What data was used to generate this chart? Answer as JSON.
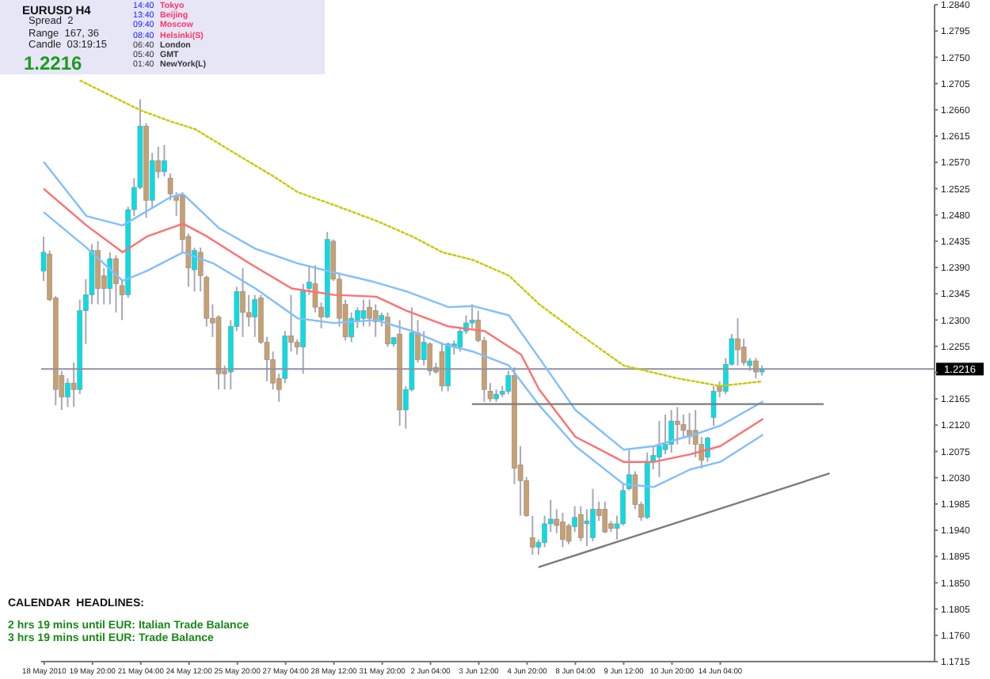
{
  "chart_data": {
    "type": "candlestick",
    "title": "EURUSD  H4",
    "categories": [
      "18 May 2010",
      null,
      null,
      null,
      null,
      null,
      null,
      null,
      "19 May 20:00",
      null,
      null,
      null,
      null,
      null,
      null,
      null,
      "21 May 04:00",
      null,
      null,
      null,
      null,
      null,
      null,
      null,
      "24 May 12:00",
      null,
      null,
      null,
      null,
      null,
      null,
      null,
      "25 May 20:00",
      null,
      null,
      null,
      null,
      null,
      null,
      null,
      "27 May 04:00",
      null,
      null,
      null,
      null,
      null,
      null,
      null,
      "28 May 12:00",
      null,
      null,
      null,
      null,
      null,
      null,
      null,
      "31 May 20:00",
      null,
      null,
      null,
      null,
      null,
      null,
      null,
      "2 Jun 04:00",
      null,
      null,
      null,
      null,
      null,
      null,
      null,
      "3 Jun 12:00",
      null,
      null,
      null,
      null,
      null,
      null,
      null,
      "4 Jun 20:00",
      null,
      null,
      null,
      null,
      null,
      null,
      null,
      "8 Jun 04:00",
      null,
      null,
      null,
      null,
      null,
      null,
      null,
      "9 Jun 12:00",
      null,
      null,
      null,
      null,
      null,
      null,
      null,
      "10 Jun 20:00",
      null,
      null,
      null,
      null,
      null,
      null,
      null,
      "14 Jun 04:00",
      null,
      null,
      null,
      null,
      null,
      null,
      null,
      null,
      null,
      null,
      null,
      null,
      null,
      null,
      null,
      null,
      null,
      null,
      null,
      null,
      null,
      null,
      null,
      null,
      null,
      null,
      null,
      null,
      null,
      null,
      null,
      null,
      null,
      null,
      null
    ],
    "ylim": [
      1.1715,
      1.284
    ],
    "yticks": [
      {
        "value": 1.284,
        "label": "1.2840"
      },
      1.2795,
      {
        "value": 1.275,
        "label": "1.2750"
      },
      1.2705,
      {
        "value": 1.266,
        "label": "1.2660"
      },
      1.2615,
      {
        "value": 1.257,
        "label": "1.2570"
      },
      1.2525,
      {
        "value": 1.248,
        "label": "1.2480"
      },
      1.2435,
      {
        "value": 1.239,
        "label": "1.2390"
      },
      1.2345,
      {
        "value": 1.23,
        "label": "1.2300"
      },
      1.2255,
      {
        "value": 1.221,
        "label": null
      },
      1.2165,
      {
        "value": 1.212,
        "label": "1.2120"
      },
      1.2075,
      {
        "value": 1.203,
        "label": "1.2030"
      },
      1.1985,
      {
        "value": 1.194,
        "label": "1.1940"
      },
      1.1895,
      {
        "value": 1.185,
        "label": "1.1850"
      },
      1.1805,
      {
        "value": 1.176,
        "label": "1.1760"
      },
      1.1715
    ],
    "annotations": [
      "Spread  2",
      "Range  167, 36",
      "Candle  03:19:15",
      "1.2216",
      "14:40",
      "13:40",
      "09:40",
      "08:40",
      "06:40",
      "05:40",
      "01:40",
      "Tokyo",
      "Beijing",
      "Moscow",
      "Helsinki(S)",
      "London",
      "GMT",
      "NewYork(L)",
      "CALENDAR  HEADLINES:",
      "2 hrs 19 mins until EUR: Italian Trade Balance",
      "3 hrs 19 mins until EUR: Trade Balance"
    ],
    "ref_lines": [
      {
        "axis": "y",
        "value": 1.2216,
        "label": "1.2216",
        "color": "#9090a8"
      }
    ],
    "series": [
      {
        "ohlc": [
          [
            1.2384,
            1.2443,
            1.2367,
            1.2416
          ],
          [
            1.2413,
            1.2419,
            1.2332,
            1.2335
          ],
          [
            1.2338,
            1.2341,
            1.2154,
            1.2181
          ],
          [
            1.2205,
            1.2213,
            1.2146,
            1.2168
          ],
          [
            1.2168,
            1.22,
            1.2151,
            1.2192
          ],
          [
            1.2192,
            1.2227,
            1.2151,
            1.2181
          ],
          [
            1.2181,
            1.2335,
            1.2173,
            1.2316
          ],
          [
            1.2316,
            1.237,
            1.2259,
            1.2343
          ],
          [
            1.2343,
            1.243,
            1.2327,
            1.2419
          ],
          [
            1.2419,
            1.2435,
            1.2327,
            1.2354
          ],
          [
            1.2376,
            1.2389,
            1.2327,
            1.2354
          ],
          [
            1.2354,
            1.2416,
            1.2327,
            1.2405
          ],
          [
            1.2405,
            1.2411,
            1.2313,
            1.2362
          ],
          [
            1.2359,
            1.237,
            1.23,
            1.2343
          ],
          [
            1.2343,
            1.2494,
            1.2338,
            1.2489
          ],
          [
            1.2489,
            1.2543,
            1.2478,
            1.2527
          ],
          [
            1.2527,
            1.2678,
            1.2524,
            1.2632
          ],
          [
            1.2632,
            1.2637,
            1.2475,
            1.2505
          ],
          [
            1.2505,
            1.2586,
            1.2492,
            1.2573
          ],
          [
            1.2573,
            1.2597,
            1.2543,
            1.2554
          ],
          [
            1.2554,
            1.26,
            1.2546,
            1.2573
          ],
          [
            1.2543,
            1.2551,
            1.2505,
            1.2516
          ],
          [
            1.2513,
            1.2519,
            1.2478,
            1.2505
          ],
          [
            1.2513,
            1.2519,
            1.2416,
            1.2438
          ],
          [
            1.2443,
            1.2448,
            1.2357,
            1.2389
          ],
          [
            1.2386,
            1.2424,
            1.2349,
            1.2419
          ],
          [
            1.2416,
            1.2424,
            1.2349,
            1.2376
          ],
          [
            1.2373,
            1.2376,
            1.2289,
            1.2303
          ],
          [
            1.2303,
            1.2327,
            1.2271,
            1.2295
          ],
          [
            1.2305,
            1.2308,
            1.2181,
            1.2208
          ],
          [
            1.2213,
            1.2222,
            1.2181,
            1.2208
          ],
          [
            1.2211,
            1.23,
            1.2181,
            1.2289
          ],
          [
            1.2289,
            1.2357,
            1.2281,
            1.2349
          ],
          [
            1.2349,
            1.2389,
            1.2271,
            1.2313
          ],
          [
            1.2313,
            1.2343,
            1.2289,
            1.2305
          ],
          [
            1.2305,
            1.2343,
            1.2271,
            1.2335
          ],
          [
            1.2338,
            1.2343,
            1.2259,
            1.2262
          ],
          [
            1.2262,
            1.2271,
            1.2195,
            1.2232
          ],
          [
            1.2232,
            1.2246,
            1.2181,
            1.2192
          ],
          [
            1.22,
            1.2208,
            1.216,
            1.2181
          ],
          [
            1.22,
            1.2281,
            1.2192,
            1.2273
          ],
          [
            1.2273,
            1.2343,
            1.2246,
            1.2262
          ],
          [
            1.2262,
            1.2267,
            1.2241,
            1.2254
          ],
          [
            1.2254,
            1.2362,
            1.2208,
            1.2351
          ],
          [
            1.2354,
            1.2394,
            1.2343,
            1.2365
          ],
          [
            1.2362,
            1.2394,
            1.2313,
            1.2322
          ],
          [
            1.2322,
            1.233,
            1.2286,
            1.2305
          ],
          [
            1.2305,
            1.2451,
            1.2303,
            1.2438
          ],
          [
            1.2435,
            1.2438,
            1.2367,
            1.237
          ],
          [
            1.237,
            1.2381,
            1.2289,
            1.2303
          ],
          [
            1.2327,
            1.2335,
            1.2265,
            1.2271
          ],
          [
            1.2271,
            1.2313,
            1.2262,
            1.2303
          ],
          [
            1.23,
            1.2322,
            1.2286,
            1.2316
          ],
          [
            1.2303,
            1.2335,
            1.2289,
            1.2316
          ],
          [
            1.2322,
            1.2335,
            1.2289,
            1.2303
          ],
          [
            1.2316,
            1.2327,
            1.2271,
            1.2297
          ],
          [
            1.23,
            1.2313,
            1.2289,
            1.2308
          ],
          [
            1.2305,
            1.2313,
            1.2254,
            1.2259
          ],
          [
            1.2259,
            1.2271,
            1.2254,
            1.227
          ],
          [
            1.2276,
            1.23,
            1.2119,
            1.2146
          ],
          [
            1.2146,
            1.2187,
            1.2114,
            1.2181
          ],
          [
            1.2181,
            1.2322,
            1.2178,
            1.2278
          ],
          [
            1.2278,
            1.23,
            1.2227,
            1.2232
          ],
          [
            1.2232,
            1.2281,
            1.2222,
            1.2262
          ],
          [
            1.2259,
            1.2262,
            1.2205,
            1.2213
          ],
          [
            1.2219,
            1.2227,
            1.2208,
            1.2211
          ],
          [
            1.2246,
            1.2262,
            1.2178,
            1.2187
          ],
          [
            1.2187,
            1.2262,
            1.2178,
            1.2259
          ],
          [
            1.2254,
            1.2265,
            1.2241,
            1.2259
          ],
          [
            1.2254,
            1.2286,
            1.2246,
            1.2281
          ],
          [
            1.2281,
            1.2308,
            1.2276,
            1.2295
          ],
          [
            1.2295,
            1.2327,
            1.2286,
            1.23
          ],
          [
            1.23,
            1.2316,
            1.2262,
            1.2265
          ],
          [
            1.2265,
            1.2271,
            1.216,
            1.2181
          ],
          [
            1.2178,
            1.2192,
            1.216,
            1.2165
          ],
          [
            1.2165,
            1.2181,
            1.216,
            1.2173
          ],
          [
            1.2173,
            1.2187,
            1.2168,
            1.2178
          ],
          [
            1.2178,
            1.2213,
            1.2173,
            1.2205
          ],
          [
            1.2205,
            1.2219,
            1.2019,
            1.2046
          ],
          [
            1.2052,
            1.2084,
            1.1965,
            1.2025
          ],
          [
            1.2025,
            1.2031,
            1.1963,
            1.1965
          ],
          [
            1.1927,
            1.1965,
            1.1898,
            1.1911
          ],
          [
            1.1911,
            1.1924,
            1.1898,
            1.1919
          ],
          [
            1.1919,
            1.1965,
            1.1911,
            1.1951
          ],
          [
            1.1951,
            1.1992,
            1.1937,
            1.1959
          ],
          [
            1.1959,
            1.1976,
            1.1935,
            1.1948
          ],
          [
            1.1954,
            1.197,
            1.1911,
            1.1924
          ],
          [
            1.1948,
            1.1951,
            1.1916,
            1.1921
          ],
          [
            1.1946,
            1.1981,
            1.1937,
            1.1962
          ],
          [
            1.1967,
            1.1981,
            1.1921,
            1.1927
          ],
          [
            1.1951,
            1.1976,
            1.1913,
            1.1956
          ],
          [
            1.1927,
            1.2011,
            1.1921,
            1.1976
          ],
          [
            1.1976,
            1.1989,
            1.1956,
            1.1965
          ],
          [
            1.1976,
            1.1989,
            1.1935,
            1.1937
          ],
          [
            1.1951,
            1.1956,
            1.1937,
            1.1943
          ],
          [
            1.1943,
            1.1965,
            1.1924,
            1.1951
          ],
          [
            1.1951,
            1.2019,
            1.1948,
            1.2008
          ],
          [
            1.2011,
            1.2078,
            1.2008,
            1.2035
          ],
          [
            1.2035,
            1.2041,
            1.1976,
            1.1984
          ],
          [
            1.1984,
            1.1989,
            1.1956,
            1.1962
          ],
          [
            1.1962,
            1.2073,
            1.1959,
            1.2057
          ],
          [
            1.2057,
            1.2084,
            1.2044,
            1.2068
          ],
          [
            1.2065,
            1.2127,
            1.2031,
            1.2084
          ],
          [
            1.2078,
            1.2138,
            1.207,
            1.2087
          ],
          [
            1.2087,
            1.2146,
            1.2073,
            1.2127
          ],
          [
            1.2127,
            1.2151,
            1.2087,
            1.2121
          ],
          [
            1.2121,
            1.2138,
            1.2098,
            1.2111
          ],
          [
            1.2111,
            1.2141,
            1.2087,
            1.21
          ],
          [
            1.2111,
            1.2146,
            1.2065,
            1.2087
          ],
          [
            1.2087,
            1.21,
            1.2046,
            1.206
          ],
          [
            1.2065,
            1.21,
            1.2057,
            1.2098
          ],
          [
            1.2133,
            1.2187,
            1.2119,
            1.2178
          ],
          [
            1.2187,
            1.2195,
            1.2168,
            1.2178
          ],
          [
            1.2178,
            1.2235,
            1.2173,
            1.2224
          ],
          [
            1.2224,
            1.2276,
            1.2222,
            1.2268
          ],
          [
            1.2268,
            1.2303,
            1.2222,
            1.2249
          ],
          [
            1.2254,
            1.2268,
            1.2222,
            1.2227
          ],
          [
            1.2222,
            1.2235,
            1.2213,
            1.223
          ],
          [
            1.223,
            1.2235,
            1.22,
            1.2211
          ],
          [
            1.2211,
            1.2222,
            1.2205,
            1.2216
          ],
          null,
          null,
          null,
          null,
          null,
          null,
          null,
          null,
          null,
          null,
          null,
          null,
          null,
          null,
          null,
          null,
          null,
          null,
          null,
          null,
          null,
          null,
          null,
          null,
          null,
          null,
          null,
          null
        ],
        "colors": [
          "#00e0e8",
          "#c8a070",
          "#c8a070",
          "#c8a070",
          "#00e0e8",
          "#c8a070",
          "#00e0e8",
          "#00e0e8",
          "#00e0e8",
          "#c8a070",
          "#c8a070",
          "#00e0e8",
          "#c8a070",
          "#c8a070",
          "#00e0e8",
          "#00e0e8",
          "#00e0e8",
          "#c8a070",
          "#00e0e8",
          "#c8a070",
          "#00e0e8",
          "#c8a070",
          "#c8a070",
          "#c8a070",
          "#c8a070",
          "#00e0e8",
          "#c8a070",
          "#c8a070",
          "#c8a070",
          "#c8a070",
          "#c8a070",
          "#00e0e8",
          "#00e0e8",
          "#c8a070",
          "#c8a070",
          "#00e0e8",
          "#c8a070",
          "#c8a070",
          "#c8a070",
          "#c8a070",
          "#00e0e8",
          "#c8a070",
          "#c8a070",
          "#00e0e8",
          "#00e0e8",
          "#c8a070",
          "#c8a070",
          "#00e0e8",
          "#c8a070",
          "#c8a070",
          "#c8a070",
          "#00e0e8",
          "#00e0e8",
          "#00e0e8",
          "#c8a070",
          "#c8a070",
          "#00e0e8",
          "#c8a070",
          "#00e0e8",
          "#c8a070",
          "#00e0e8",
          "#00e0e8",
          "#c8a070",
          "#00e0e8",
          "#c8a070",
          "#c8a070",
          "#c8a070",
          "#00e0e8",
          "#00e0e8",
          "#00e0e8",
          "#00e0e8",
          "#00e0e8",
          "#c8a070",
          "#c8a070",
          "#c8a070",
          "#00e0e8",
          "#00e0e8",
          "#00e0e8",
          "#c8a070",
          "#c8a070",
          "#c8a070",
          "#c8a070",
          "#00e0e8",
          "#00e0e8",
          "#00e0e8",
          "#c8a070",
          "#c8a070",
          "#c8a070",
          "#00e0e8",
          "#c8a070",
          "#00e0e8",
          "#00e0e8",
          "#c8a070",
          "#c8a070",
          "#c8a070",
          "#00e0e8",
          "#00e0e8",
          "#00e0e8",
          "#c8a070",
          "#c8a070",
          "#00e0e8",
          "#00e0e8",
          "#00e0e8",
          "#00e0e8",
          "#00e0e8",
          "#c8a070",
          "#c8a070",
          "#c8a070",
          "#c8a070",
          "#c8a070",
          "#00e0e8",
          "#00e0e8",
          "#c8a070",
          "#00e0e8",
          "#00e0e8",
          "#c8a070",
          "#c8a070",
          "#00e0e8",
          "#c8a070",
          "#00e0e8",
          null,
          null,
          null,
          null,
          null,
          null,
          null,
          null,
          null,
          null,
          null,
          null,
          null,
          null,
          null,
          null,
          null,
          null,
          null,
          null,
          null,
          null,
          null,
          null,
          null,
          null,
          null,
          null
        ]
      },
      {
        "type": "line",
        "color": "#c8c800",
        "line_style": "dotted",
        "values": [
          null,
          null,
          null,
          null,
          null,
          null,
          1.271,
          null,
          null,
          null,
          null,
          null,
          null,
          null,
          null,
          null,
          1.2659,
          null,
          null,
          null,
          null,
          1.264,
          null,
          null,
          null,
          1.2627,
          null,
          null,
          null,
          null,
          null,
          null,
          1.2583,
          null,
          null,
          null,
          null,
          null,
          1.2546,
          null,
          null,
          null,
          1.2519,
          null,
          null,
          null,
          null,
          null,
          1.2497,
          null,
          null,
          null,
          null,
          null,
          null,
          1.247,
          null,
          null,
          null,
          null,
          null,
          1.2443,
          null,
          null,
          null,
          null,
          1.2416,
          null,
          null,
          null,
          null,
          1.2403,
          null,
          null,
          null,
          null,
          null,
          1.2376,
          null,
          null,
          null,
          null,
          1.2327,
          null,
          null,
          null,
          null,
          null,
          1.2281,
          null,
          null,
          null,
          null,
          null,
          null,
          null,
          1.2222,
          null,
          null,
          null,
          null,
          null,
          null,
          null,
          null,
          1.22,
          null,
          null,
          null,
          null,
          null,
          null,
          1.2187,
          null,
          null,
          null,
          null,
          null,
          null,
          1.2195,
          null,
          null,
          null,
          null,
          null,
          null,
          null,
          null,
          null,
          null,
          null,
          null,
          null,
          null,
          null,
          null,
          null,
          null,
          null,
          null,
          null,
          null,
          null,
          null,
          null,
          null,
          null,
          null
        ]
      },
      {
        "type": "line",
        "color": "#ff7070",
        "values": [
          1.2524,
          null,
          null,
          null,
          null,
          null,
          null,
          1.2462,
          null,
          null,
          null,
          null,
          null,
          1.2416,
          null,
          null,
          null,
          1.2443,
          null,
          null,
          null,
          null,
          null,
          1.2465,
          null,
          null,
          null,
          1.2443,
          null,
          null,
          null,
          null,
          null,
          null,
          1.2397,
          null,
          null,
          null,
          null,
          null,
          null,
          1.2354,
          null,
          null,
          null,
          null,
          null,
          null,
          1.2343,
          null,
          null,
          null,
          null,
          null,
          null,
          1.234,
          null,
          null,
          null,
          null,
          1.2316,
          null,
          null,
          null,
          null,
          null,
          null,
          1.2289,
          null,
          null,
          null,
          null,
          null,
          1.2281,
          null,
          null,
          null,
          null,
          null,
          1.2241,
          null,
          null,
          1.2181,
          null,
          null,
          null,
          null,
          null,
          1.21,
          null,
          null,
          null,
          null,
          null,
          null,
          null,
          1.2057,
          null,
          null,
          null,
          null,
          1.2057,
          null,
          null,
          null,
          null,
          null,
          1.207,
          null,
          null,
          null,
          null,
          1.2084,
          null,
          null,
          null,
          null,
          null,
          null,
          1.213,
          null,
          null,
          null,
          null,
          null,
          null,
          null,
          null,
          null,
          null,
          null,
          null,
          null,
          null,
          null,
          null,
          null,
          null,
          null,
          null,
          null,
          null,
          null,
          null,
          null,
          null,
          null,
          null
        ]
      },
      {
        "type": "line",
        "color": "#80bfff",
        "values": [
          1.257,
          null,
          null,
          null,
          null,
          null,
          null,
          1.2478,
          null,
          null,
          null,
          null,
          null,
          1.2462,
          null,
          null,
          null,
          null,
          null,
          null,
          null,
          1.2511,
          null,
          1.2516,
          null,
          null,
          null,
          null,
          null,
          1.2457,
          null,
          null,
          null,
          null,
          null,
          1.2422,
          null,
          null,
          null,
          null,
          null,
          null,
          1.2397,
          null,
          null,
          null,
          null,
          1.2384,
          null,
          null,
          null,
          null,
          null,
          null,
          1.2367,
          null,
          null,
          null,
          null,
          null,
          1.2349,
          null,
          null,
          null,
          null,
          null,
          null,
          1.2322,
          null,
          null,
          null,
          1.2324,
          null,
          null,
          null,
          null,
          null,
          1.2308,
          null,
          null,
          null,
          null,
          1.2235,
          null,
          null,
          null,
          null,
          null,
          1.2146,
          null,
          null,
          null,
          null,
          null,
          null,
          null,
          1.2078,
          null,
          null,
          null,
          null,
          1.2084,
          null,
          null,
          null,
          null,
          null,
          null,
          1.2105,
          null,
          null,
          null,
          1.2119,
          null,
          null,
          null,
          null,
          null,
          null,
          1.216,
          null,
          null,
          null,
          null,
          null,
          null,
          null,
          null,
          null,
          null,
          null,
          null,
          null,
          null,
          null,
          null,
          null,
          null,
          null,
          null,
          null,
          null,
          null,
          null,
          null,
          null,
          null,
          null
        ]
      },
      {
        "type": "line",
        "color": "#80bfff",
        "values": [
          1.2484,
          null,
          null,
          null,
          null,
          null,
          null,
          1.2424,
          null,
          null,
          null,
          null,
          null,
          1.2367,
          null,
          null,
          null,
          1.2384,
          null,
          null,
          null,
          null,
          null,
          1.2416,
          null,
          null,
          null,
          null,
          1.2397,
          null,
          null,
          null,
          null,
          null,
          null,
          1.2354,
          null,
          null,
          null,
          null,
          null,
          null,
          1.2303,
          null,
          null,
          null,
          null,
          null,
          1.2295,
          null,
          null,
          null,
          null,
          null,
          null,
          1.23,
          null,
          null,
          null,
          null,
          null,
          1.2281,
          null,
          null,
          null,
          null,
          1.2259,
          null,
          null,
          null,
          null,
          1.2246,
          null,
          null,
          null,
          null,
          null,
          1.2222,
          null,
          null,
          null,
          null,
          1.2154,
          null,
          null,
          null,
          null,
          null,
          1.2084,
          null,
          null,
          null,
          null,
          null,
          null,
          null,
          1.2019,
          null,
          null,
          null,
          null,
          1.2014,
          null,
          null,
          null,
          null,
          null,
          1.2044,
          null,
          null,
          null,
          null,
          1.2057,
          null,
          null,
          null,
          null,
          null,
          null,
          1.2103,
          null,
          null,
          null,
          null,
          null,
          null,
          null,
          null,
          null,
          null,
          null,
          null,
          null,
          null,
          null,
          null,
          null,
          null,
          null,
          null,
          null,
          null,
          null,
          null,
          null,
          null,
          null,
          null
        ]
      },
      {
        "type": "line",
        "color": "#7c7c7c",
        "values": [
          null,
          null,
          null,
          null,
          null,
          null,
          null,
          null,
          null,
          null,
          null,
          null,
          null,
          null,
          null,
          null,
          null,
          null,
          null,
          null,
          null,
          null,
          null,
          null,
          null,
          null,
          null,
          null,
          null,
          null,
          null,
          null,
          null,
          null,
          null,
          null,
          null,
          null,
          null,
          null,
          null,
          null,
          null,
          null,
          null,
          null,
          null,
          null,
          null,
          null,
          null,
          null,
          null,
          null,
          null,
          null,
          null,
          null,
          null,
          null,
          null,
          null,
          null,
          null,
          null,
          null,
          null,
          null,
          null,
          null,
          null,
          1.2156,
          null,
          null,
          null,
          null,
          null,
          null,
          null,
          null,
          null,
          null,
          null,
          null,
          null,
          null,
          null,
          null,
          null,
          null,
          null,
          null,
          null,
          null,
          null,
          null,
          null,
          null,
          null,
          null,
          null,
          null,
          null,
          null,
          null,
          null,
          null,
          null,
          null,
          null,
          null,
          null,
          null,
          null,
          null,
          null,
          null,
          null,
          null,
          null,
          null,
          null,
          null,
          null,
          null,
          null,
          null,
          null,
          null,
          1.2156,
          null,
          null,
          null,
          null,
          null,
          null,
          null,
          null,
          null,
          null,
          null,
          null,
          null,
          null,
          null,
          null,
          null,
          null
        ]
      },
      {
        "type": "line",
        "color": "#7c7c7c",
        "values": [
          null,
          null,
          null,
          null,
          null,
          null,
          null,
          null,
          null,
          null,
          null,
          null,
          null,
          null,
          null,
          null,
          null,
          null,
          null,
          null,
          null,
          null,
          null,
          null,
          null,
          null,
          null,
          null,
          null,
          null,
          null,
          null,
          null,
          null,
          null,
          null,
          null,
          null,
          null,
          null,
          null,
          null,
          null,
          null,
          null,
          null,
          null,
          null,
          null,
          null,
          null,
          null,
          null,
          null,
          null,
          null,
          null,
          null,
          null,
          null,
          null,
          null,
          null,
          null,
          null,
          null,
          null,
          null,
          null,
          null,
          null,
          null,
          null,
          null,
          null,
          null,
          null,
          null,
          null,
          null,
          null,
          null,
          1.1877,
          null,
          null,
          null,
          null,
          null,
          null,
          null,
          null,
          null,
          null,
          null,
          null,
          null,
          null,
          null,
          null,
          null,
          null,
          null,
          null,
          null,
          null,
          null,
          null,
          null,
          null,
          null,
          null,
          null,
          null,
          null,
          null,
          null,
          null,
          null,
          null,
          null,
          null,
          null,
          null,
          null,
          null,
          null,
          null,
          null,
          null,
          null,
          1.2037,
          null,
          null,
          null,
          null,
          null,
          null,
          null,
          null,
          null,
          null,
          null,
          null,
          null,
          null,
          null,
          null,
          null
        ]
      }
    ]
  }
}
